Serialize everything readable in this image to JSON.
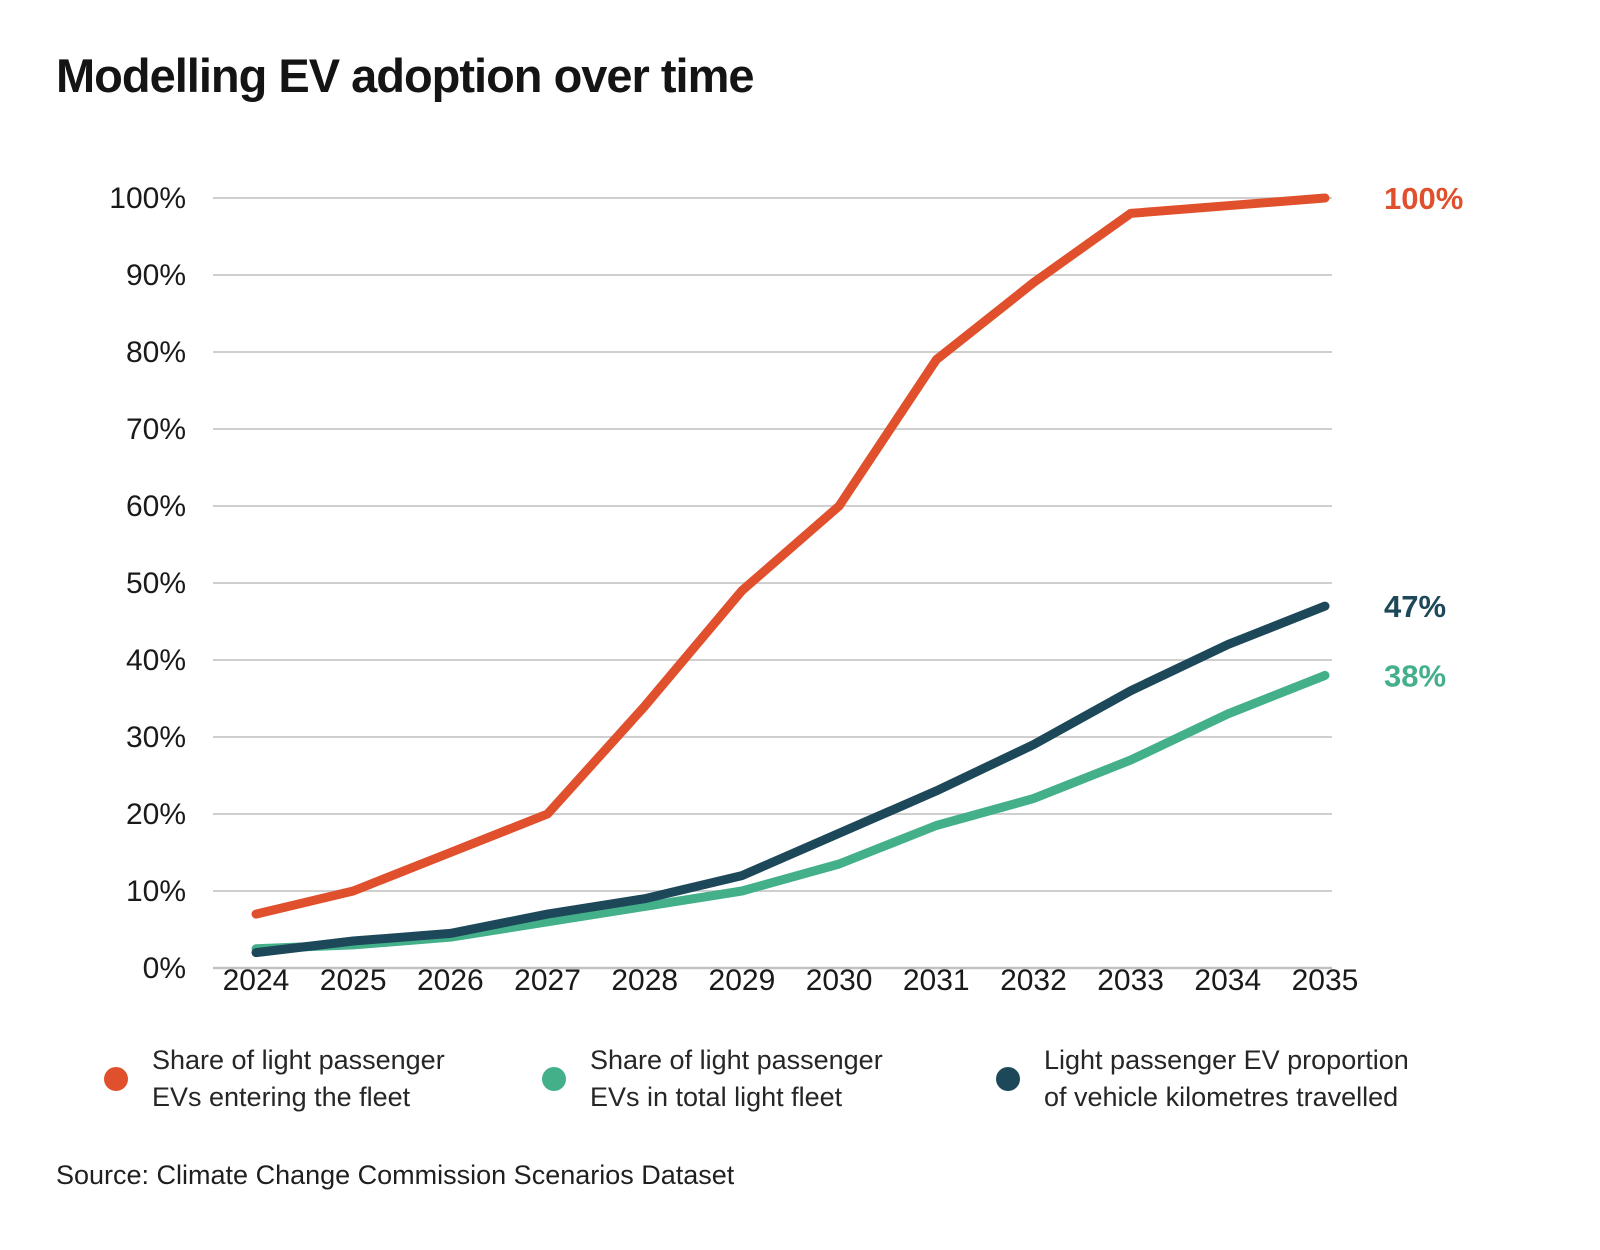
{
  "title": "Modelling EV adoption over time",
  "source": "Source: Climate Change Commission Scenarios Dataset",
  "colors": {
    "orange": "#E0502C",
    "teal": "#43B08A",
    "navy": "#1C4859",
    "grid": "#CFCFCF",
    "axis_line": "#C2C2C2",
    "text": "#1A1A1A",
    "legend_text": "#262626"
  },
  "chart_data": {
    "type": "line",
    "x": [
      "2024",
      "2025",
      "2026",
      "2027",
      "2028",
      "2029",
      "2030",
      "2031",
      "2032",
      "2033",
      "2034",
      "2035"
    ],
    "series": [
      {
        "name": "Share of light passenger EVs entering the fleet",
        "color": "#E0502C",
        "values": [
          7,
          10,
          15,
          20,
          34,
          49,
          60,
          79,
          89,
          98,
          99,
          100
        ],
        "end_label": "100%"
      },
      {
        "name": "Share of light passenger EVs in total light fleet",
        "color": "#43B08A",
        "values": [
          2.5,
          3,
          4,
          6,
          8,
          10,
          13.5,
          18.5,
          22,
          27,
          33,
          38
        ],
        "end_label": "38%"
      },
      {
        "name": "Light passenger EV proportion of vehicle kilometres travelled",
        "color": "#1C4859",
        "values": [
          2,
          3.5,
          4.5,
          7,
          9,
          12,
          17.5,
          23,
          29,
          36,
          42,
          47
        ],
        "end_label": "47%"
      }
    ],
    "y_ticks": [
      "0%",
      "10%",
      "20%",
      "30%",
      "40%",
      "50%",
      "60%",
      "70%",
      "80%",
      "90%",
      "100%"
    ],
    "ylim": [
      0,
      100
    ],
    "grid": true,
    "legend_position": "bottom",
    "xlabel": "",
    "ylabel": ""
  },
  "legend": {
    "items": [
      {
        "line1": "Share of light passenger",
        "line2": "EVs entering the fleet",
        "color": "#E0502C"
      },
      {
        "line1": "Share of light passenger",
        "line2": "EVs in total light fleet",
        "color": "#43B08A"
      },
      {
        "line1": "Light passenger EV proportion",
        "line2": "of vehicle kilometres travelled",
        "color": "#1C4859"
      }
    ]
  }
}
